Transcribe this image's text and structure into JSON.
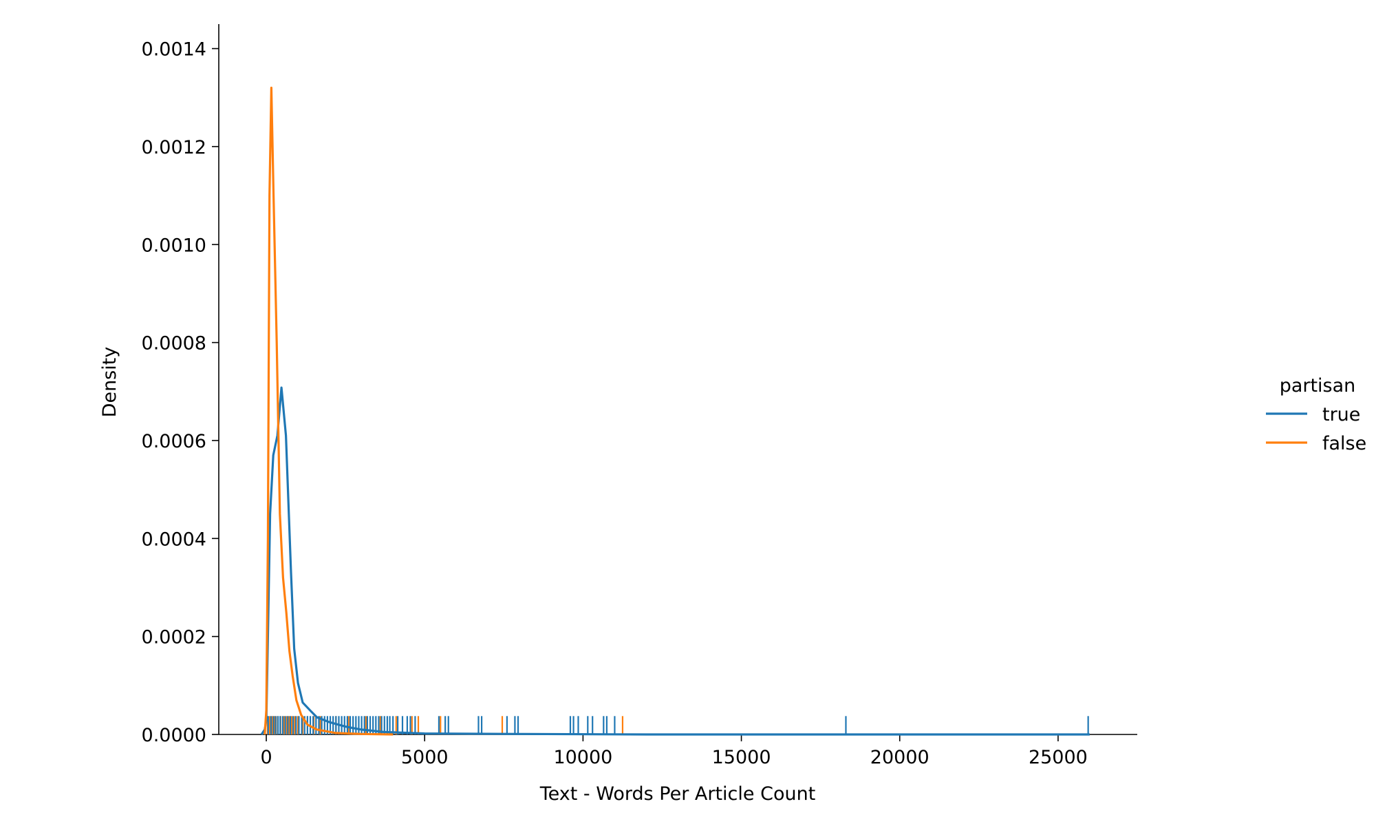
{
  "chart_data": {
    "type": "line",
    "title": "",
    "xlabel": "Text - Words Per Article Count",
    "ylabel": "Density",
    "xlim": [
      -1500,
      27500
    ],
    "ylim": [
      0,
      0.00145
    ],
    "x_ticks": [
      0,
      5000,
      10000,
      15000,
      20000,
      25000
    ],
    "x_tick_labels": [
      "0",
      "5000",
      "10000",
      "15000",
      "20000",
      "25000"
    ],
    "y_ticks": [
      0,
      0.0002,
      0.0004,
      0.0006,
      0.0008,
      0.001,
      0.0012,
      0.0014
    ],
    "y_tick_labels": [
      "0.0000",
      "0.0002",
      "0.0004",
      "0.0006",
      "0.0008",
      "0.0010",
      "0.0012",
      "0.0014"
    ],
    "grid": false,
    "legend": {
      "title": "partisan",
      "placement": "right"
    },
    "series": [
      {
        "name": "true",
        "color": "#1f77b4",
        "points": [
          [
            -150,
            0
          ],
          [
            -50,
            1e-05
          ],
          [
            0,
            3e-05
          ],
          [
            50,
            0.0002
          ],
          [
            120,
            0.00045
          ],
          [
            220,
            0.00057
          ],
          [
            350,
            0.00061
          ],
          [
            480,
            0.000708
          ],
          [
            620,
            0.00061
          ],
          [
            780,
            0.00033
          ],
          [
            880,
            0.000175
          ],
          [
            1000,
            0.000105
          ],
          [
            1150,
            6.5e-05
          ],
          [
            1400,
            4.8e-05
          ],
          [
            1600,
            3.5e-05
          ],
          [
            2000,
            2.5e-05
          ],
          [
            2500,
            1.6e-05
          ],
          [
            3000,
            1e-05
          ],
          [
            3700,
            5e-06
          ],
          [
            5000,
            2e-06
          ],
          [
            8000,
            1e-06
          ],
          [
            12000,
            0
          ],
          [
            26000,
            0
          ]
        ],
        "rug": [
          60,
          150,
          230,
          300,
          370,
          440,
          520,
          600,
          680,
          760,
          850,
          940,
          1030,
          1120,
          1210,
          1300,
          1390,
          1480,
          1570,
          1660,
          1750,
          1840,
          1930,
          2020,
          2110,
          2200,
          2290,
          2380,
          2470,
          2560,
          2650,
          2740,
          2830,
          2920,
          3010,
          3100,
          3190,
          3280,
          3370,
          3460,
          3550,
          3640,
          3730,
          3820,
          3900,
          4000,
          4150,
          4300,
          4450,
          4550,
          4700,
          5450,
          5650,
          5750,
          6700,
          6800,
          7600,
          7850,
          7950,
          9600,
          9700,
          9850,
          10150,
          10300,
          10650,
          10750,
          11000,
          18300,
          25950
        ]
      },
      {
        "name": "false",
        "color": "#ff7f0e",
        "points": [
          [
            -50,
            0
          ],
          [
            0,
            5e-05
          ],
          [
            50,
            0.0004
          ],
          [
            100,
            0.0011
          ],
          [
            160,
            0.00132
          ],
          [
            230,
            0.0011
          ],
          [
            330,
            0.0008
          ],
          [
            430,
            0.00045
          ],
          [
            530,
            0.00032
          ],
          [
            630,
            0.00025
          ],
          [
            730,
            0.00017
          ],
          [
            830,
            0.00012
          ],
          [
            950,
            7e-05
          ],
          [
            1100,
            4e-05
          ],
          [
            1300,
            2e-05
          ],
          [
            1600,
            1e-05
          ],
          [
            2200,
            3e-06
          ],
          [
            3000,
            1e-06
          ],
          [
            4000,
            0
          ]
        ],
        "rug": [
          40,
          110,
          190,
          270,
          360,
          450,
          560,
          650,
          720,
          800,
          900,
          1000,
          1150,
          1300,
          1500,
          1700,
          2200,
          2600,
          3150,
          3600,
          4100,
          4600,
          4800,
          5500,
          7450,
          11250
        ]
      }
    ]
  }
}
